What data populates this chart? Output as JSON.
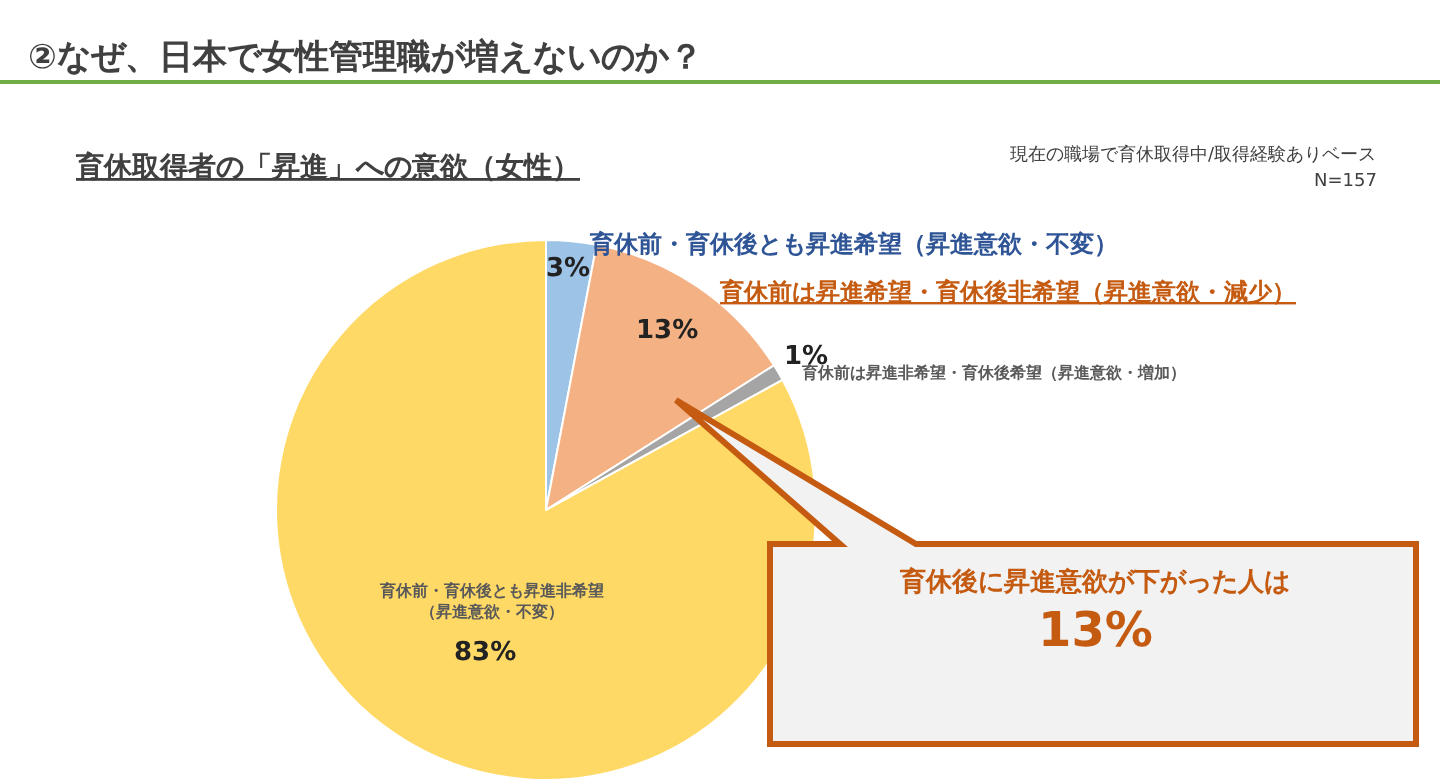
{
  "chart_data": {
    "type": "pie",
    "title": "②なぜ、日本で女性管理職が増えないのか？",
    "subtitle": "育休取得者の「昇進」への意欲（女性）",
    "categories": [
      "育休前・育休後とも昇進希望（昇進意欲・不変）",
      "育休前は昇進希望・育休後非希望（昇進意欲・減少）",
      "育休前は昇進非希望・育休後希望（昇進意欲・増加）",
      "育休前・育休後とも昇進非希望（昇進意欲・不変）"
    ],
    "values": [
      3,
      13,
      1,
      83
    ],
    "colors": [
      "#9dc3e6",
      "#f4b183",
      "#a5a5a5",
      "#ffd966"
    ],
    "value_labels": [
      "3%",
      "13%",
      "1%",
      "83%"
    ],
    "legend": false,
    "annotations": [
      "現在の職場で育休取得中/取得経験ありベース",
      "N=157",
      "育休後に昇進意欲が下がった人は",
      "13%"
    ]
  }
}
